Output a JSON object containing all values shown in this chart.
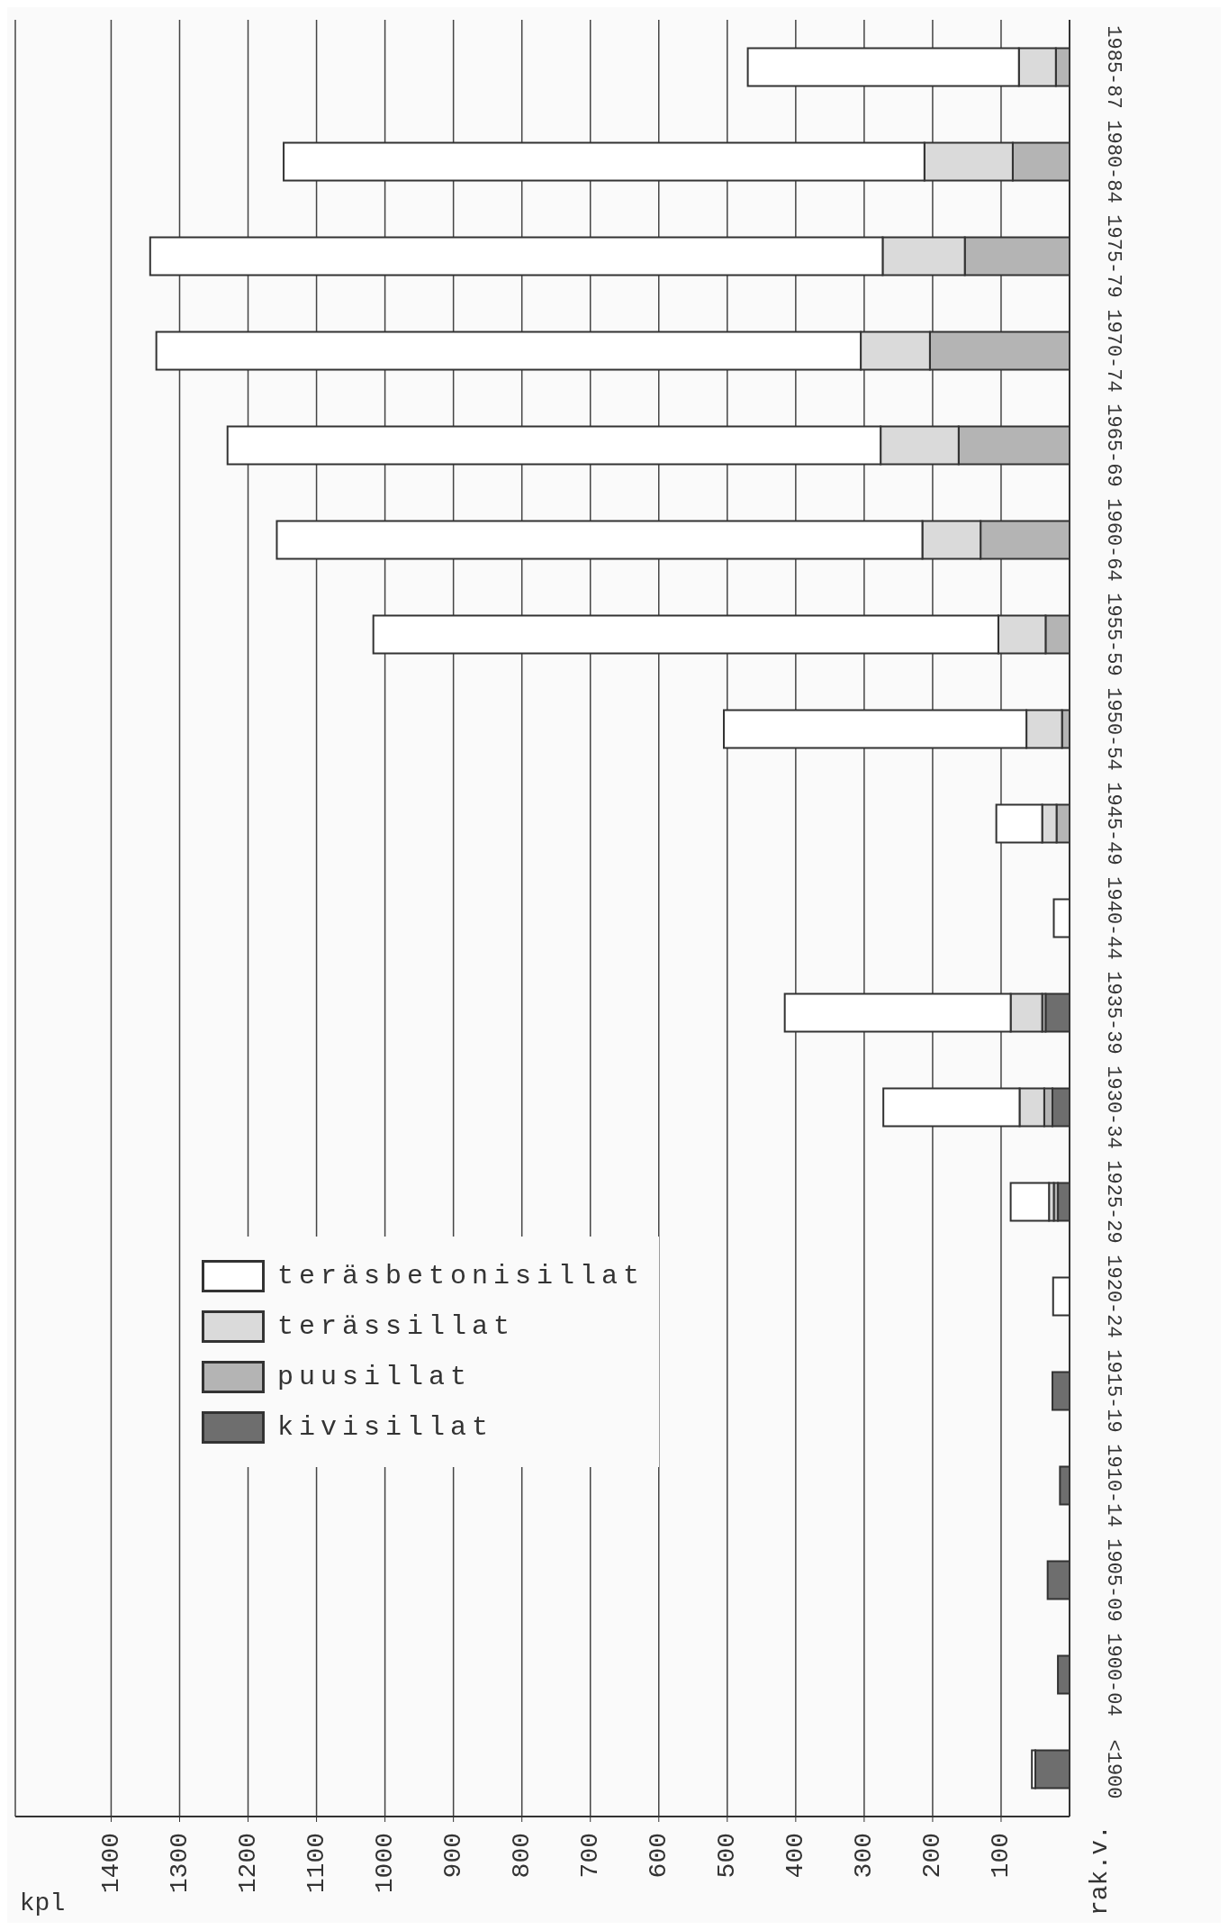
{
  "chart_data": {
    "type": "bar",
    "orientation": "horizontal",
    "stacked": true,
    "xlabel": "kpl",
    "ylabel": "rak.v.",
    "categories": [
      "1985-87",
      "1980-84",
      "1975-79",
      "1970-74",
      "1965-69",
      "1960-64",
      "1955-59",
      "1950-54",
      "1945-49",
      "1940-44",
      "1935-39",
      "1930-34",
      "1925-29",
      "1920-24",
      "1915-19",
      "1910-14",
      "1905-09",
      "1900-04",
      "<1900"
    ],
    "series": [
      {
        "name": "kivisillat",
        "color": "#6e6e6e",
        "values": [
          null,
          null,
          null,
          null,
          null,
          null,
          null,
          null,
          null,
          null,
          35,
          25,
          17,
          null,
          25,
          14,
          32,
          17,
          50
        ]
      },
      {
        "name": "puusillat",
        "color": "#b4b4b4",
        "values": [
          20,
          83,
          153,
          204,
          162,
          130,
          35,
          11,
          19,
          null,
          5,
          12,
          6,
          null,
          null,
          null,
          null,
          null,
          null
        ]
      },
      {
        "name": "terässillat",
        "color": "#dadada",
        "values": [
          54,
          129,
          120,
          101,
          114,
          85,
          69,
          52,
          21,
          null,
          46,
          36,
          7,
          null,
          null,
          null,
          null,
          null,
          null
        ]
      },
      {
        "name": "teräsbetonisillat",
        "color": "#ffffff",
        "values": [
          396,
          936,
          1070,
          1029,
          954,
          943,
          913,
          442,
          67,
          23,
          330,
          199,
          56,
          24,
          null,
          null,
          null,
          null,
          5
        ]
      }
    ],
    "xlim": [
      1540,
      0
    ],
    "xticks": [
      1400,
      1300,
      1200,
      1100,
      1000,
      900,
      800,
      700,
      600,
      500,
      400,
      300,
      200,
      100
    ],
    "grid": "x",
    "legend": "bottom left"
  }
}
